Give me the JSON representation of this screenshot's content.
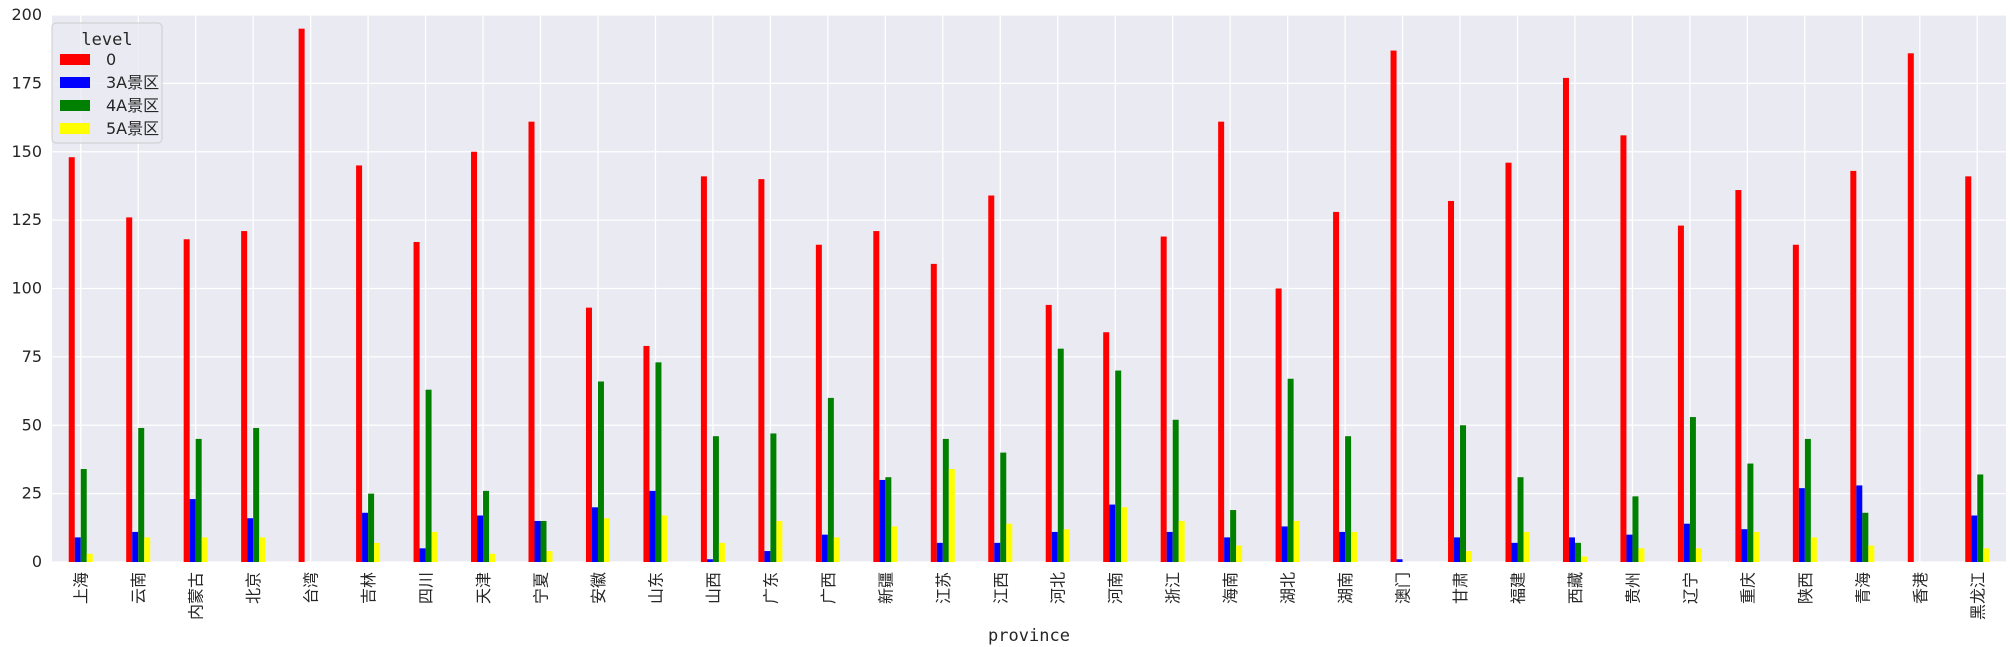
{
  "chart_data": {
    "type": "bar",
    "xlabel": "province",
    "ylabel": "",
    "ylim": [
      0,
      200
    ],
    "yticks": [
      0,
      25,
      50,
      75,
      100,
      125,
      150,
      175,
      200
    ],
    "grid": true,
    "legend": {
      "title": "level",
      "placement": "top-left"
    },
    "categories": [
      "上海",
      "云南",
      "内蒙古",
      "北京",
      "台湾",
      "吉林",
      "四川",
      "天津",
      "宁夏",
      "安徽",
      "山东",
      "山西",
      "广东",
      "广西",
      "新疆",
      "江苏",
      "江西",
      "河北",
      "河南",
      "浙江",
      "海南",
      "湖北",
      "湖南",
      "澳门",
      "甘肃",
      "福建",
      "西藏",
      "贵州",
      "辽宁",
      "重庆",
      "陕西",
      "青海",
      "香港",
      "黑龙江"
    ],
    "series": [
      {
        "name": "0",
        "color": "#ff0000",
        "values": [
          148,
          126,
          118,
          121,
          195,
          145,
          117,
          150,
          161,
          93,
          79,
          141,
          140,
          116,
          121,
          109,
          134,
          94,
          84,
          119,
          161,
          100,
          128,
          187,
          132,
          146,
          177,
          156,
          123,
          136,
          116,
          143,
          186,
          141
        ]
      },
      {
        "name": "3A景区",
        "color": "#0000ff",
        "values": [
          9,
          11,
          23,
          16,
          0,
          18,
          5,
          17,
          15,
          20,
          26,
          1,
          4,
          10,
          30,
          7,
          7,
          11,
          21,
          11,
          9,
          13,
          11,
          1,
          9,
          7,
          9,
          10,
          14,
          12,
          27,
          28,
          0,
          17
        ]
      },
      {
        "name": "4A景区",
        "color": "#008000",
        "values": [
          34,
          49,
          45,
          49,
          0,
          25,
          63,
          26,
          15,
          66,
          73,
          46,
          47,
          60,
          31,
          45,
          40,
          78,
          70,
          52,
          19,
          67,
          46,
          0,
          50,
          31,
          7,
          24,
          53,
          36,
          45,
          18,
          0,
          32
        ]
      },
      {
        "name": "5A景区",
        "color": "#ffff00",
        "values": [
          3,
          9,
          9,
          9,
          0,
          7,
          11,
          3,
          4,
          16,
          17,
          7,
          15,
          9,
          13,
          34,
          14,
          12,
          20,
          15,
          6,
          15,
          11,
          0,
          4,
          11,
          2,
          5,
          5,
          11,
          9,
          6,
          0,
          5
        ]
      }
    ]
  }
}
